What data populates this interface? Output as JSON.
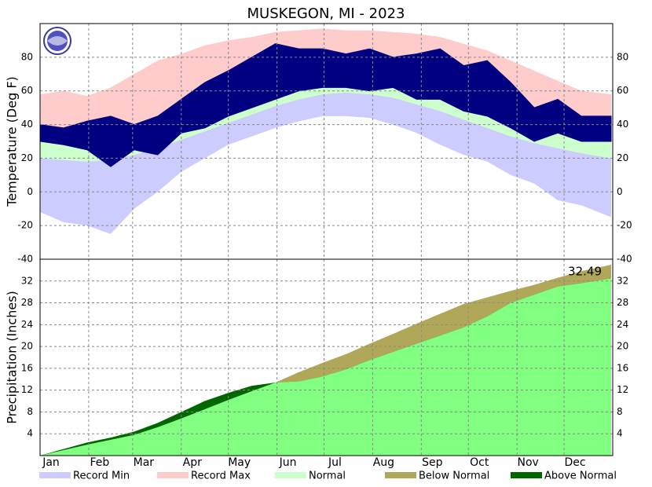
{
  "chart_data": {
    "type": "climate",
    "title": "MUSKEGON, MI - 2023",
    "x": [
      0,
      15,
      30,
      45,
      60,
      75,
      90,
      105,
      120,
      135,
      150,
      165,
      180,
      195,
      210,
      225,
      240,
      255,
      270,
      285,
      300,
      315,
      330,
      345,
      364
    ],
    "xlim": [
      0,
      365
    ],
    "xticks": [
      {
        "value": 0,
        "label": "Jan"
      },
      {
        "value": 31,
        "label": "Feb"
      },
      {
        "value": 59,
        "label": "Mar"
      },
      {
        "value": 90,
        "label": "Apr"
      },
      {
        "value": 120,
        "label": "May"
      },
      {
        "value": 151,
        "label": "Jun"
      },
      {
        "value": 181,
        "label": "Jul"
      },
      {
        "value": 212,
        "label": "Aug"
      },
      {
        "value": 243,
        "label": "Sep"
      },
      {
        "value": 273,
        "label": "Oct"
      },
      {
        "value": 304,
        "label": "Nov"
      },
      {
        "value": 334,
        "label": "Dec"
      }
    ],
    "grid": true,
    "temperature": {
      "ylabel": "Temperature (Deg F)",
      "ylim": [
        -40,
        100
      ],
      "yticks": [
        -40,
        -20,
        0,
        20,
        40,
        60,
        80
      ],
      "record_min": {
        "name": "Record Min",
        "color": "#ccccff",
        "values": [
          -12,
          -18,
          -20,
          -25,
          -10,
          0,
          12,
          20,
          28,
          33,
          38,
          42,
          45,
          45,
          44,
          40,
          35,
          28,
          22,
          18,
          10,
          5,
          -5,
          -8,
          -15
        ]
      },
      "record_max": {
        "name": "Record Max",
        "color": "#ffcccc",
        "values": [
          58,
          60,
          57,
          62,
          70,
          78,
          82,
          87,
          90,
          92,
          95,
          96,
          97,
          96,
          96,
          95,
          94,
          92,
          88,
          84,
          78,
          72,
          66,
          60,
          58
        ]
      },
      "normal": {
        "name": "Normal",
        "color": "#ccffcc",
        "low": [
          20,
          19,
          18,
          19,
          22,
          26,
          31,
          36,
          41,
          46,
          51,
          55,
          58,
          59,
          58,
          56,
          52,
          48,
          43,
          38,
          33,
          29,
          26,
          23,
          20
        ],
        "high": [
          33,
          31,
          31,
          33,
          37,
          42,
          49,
          55,
          62,
          68,
          73,
          77,
          80,
          80,
          79,
          77,
          74,
          69,
          63,
          57,
          50,
          43,
          38,
          34,
          32
        ]
      },
      "observed": {
        "color": "#000080",
        "high": [
          40,
          38,
          42,
          45,
          40,
          45,
          55,
          65,
          72,
          80,
          88,
          85,
          85,
          82,
          85,
          80,
          82,
          85,
          75,
          78,
          65,
          50,
          55,
          45,
          45
        ],
        "low": [
          30,
          28,
          25,
          15,
          25,
          22,
          35,
          38,
          45,
          50,
          55,
          60,
          62,
          62,
          60,
          62,
          55,
          55,
          48,
          45,
          38,
          30,
          35,
          30,
          30
        ]
      }
    },
    "precipitation": {
      "ylabel": "Precipitation (Inches)",
      "ylim": [
        0,
        36
      ],
      "yticks": [
        4,
        8,
        12,
        16,
        20,
        24,
        28,
        32
      ],
      "fill_color": "#80ff80",
      "normal": {
        "values": [
          0,
          1.0,
          2.0,
          2.9,
          3.8,
          5.2,
          6.8,
          8.5,
          10.2,
          11.8,
          13.4,
          15.3,
          17.0,
          18.6,
          20.5,
          22.3,
          24.2,
          26.0,
          27.8,
          29.0,
          30.2,
          31.3,
          32.6,
          33.8,
          35.0
        ]
      },
      "observed": {
        "values": [
          0,
          1.2,
          2.4,
          3.3,
          4.4,
          6.0,
          8.0,
          10.0,
          11.5,
          12.8,
          13.4,
          13.6,
          14.5,
          15.8,
          17.5,
          19.0,
          20.5,
          22.0,
          23.5,
          25.5,
          28.0,
          29.5,
          31.0,
          31.6,
          32.49
        ]
      },
      "below_normal": {
        "name": "Below Normal",
        "color": "#b0a858"
      },
      "above_normal": {
        "name": "Above Normal",
        "color": "#006600"
      },
      "total_label": "32.49"
    }
  }
}
